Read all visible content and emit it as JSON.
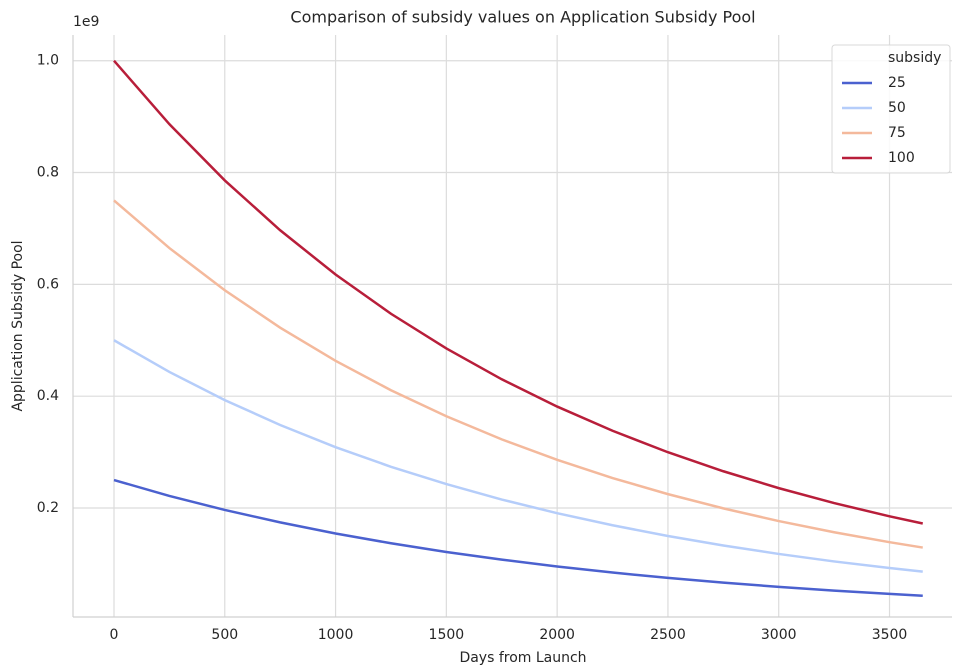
{
  "chart_data": {
    "type": "line",
    "title": "Comparison of subsidy values on Application Subsidy Pool",
    "xlabel": "Days from Launch",
    "ylabel": "Application Subsidy Pool",
    "y_offset_label": "1e9",
    "legend_title": "subsidy",
    "legend": "upper right",
    "grid": true,
    "x": [
      0,
      250,
      500,
      750,
      1000,
      1250,
      1500,
      1750,
      2000,
      2250,
      2500,
      2750,
      3000,
      3250,
      3500,
      3650
    ],
    "series": [
      {
        "name": "25",
        "color": "#4b61cf",
        "values": [
          0.25,
          0.2216,
          0.1965,
          0.1742,
          0.1544,
          0.1369,
          0.1213,
          0.1076,
          0.0954,
          0.0845,
          0.0749,
          0.0664,
          0.0589,
          0.0522,
          0.0463,
          0.0431
        ]
      },
      {
        "name": "50",
        "color": "#b5cdfa",
        "values": [
          0.5,
          0.4433,
          0.393,
          0.3484,
          0.3088,
          0.2737,
          0.2427,
          0.2151,
          0.1907,
          0.1691,
          0.1499,
          0.1329,
          0.1178,
          0.1044,
          0.0926,
          0.0861
        ]
      },
      {
        "name": "75",
        "color": "#f4b99c",
        "values": [
          0.75,
          0.6649,
          0.5894,
          0.5225,
          0.4632,
          0.4106,
          0.364,
          0.3227,
          0.2861,
          0.2536,
          0.2248,
          0.1993,
          0.1766,
          0.1566,
          0.1388,
          0.1292
        ]
      },
      {
        "name": "100",
        "color": "#b81e3a",
        "values": [
          1,
          0.8865,
          0.7859,
          0.6967,
          0.6176,
          0.5474,
          0.4853,
          0.4302,
          0.3814,
          0.3381,
          0.2997,
          0.2657,
          0.2355,
          0.2088,
          0.1851,
          0.1722
        ]
      }
    ],
    "xlim": [
      -185,
      3782
    ],
    "xticks": [
      0,
      500,
      1000,
      1500,
      2000,
      2500,
      3000,
      3500
    ],
    "ylim": [
      0.005,
      1.046
    ],
    "yticks": [
      0.2,
      0.4,
      0.6,
      0.8,
      {
        "value": 1,
        "label": "1.0"
      }
    ]
  }
}
